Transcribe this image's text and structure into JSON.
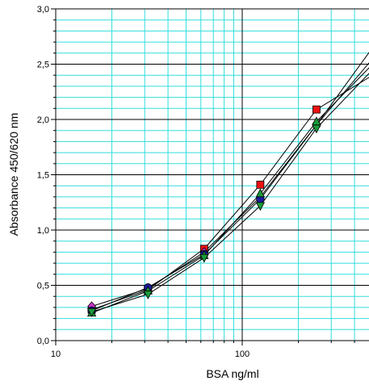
{
  "chart_data": {
    "type": "line",
    "title": "",
    "xlabel": "BSA  ng/ml",
    "ylabel": "Absorbance 450/620 nm",
    "x_scale": "log",
    "xlim": [
      10,
      457
    ],
    "ylim": [
      0,
      3.0
    ],
    "x_tick_labels": [
      {
        "value": 10,
        "label": "10"
      },
      {
        "value": 100,
        "label": "100"
      }
    ],
    "y_tick_labels": [
      {
        "value": 0,
        "label": "0,0"
      },
      {
        "value": 0.5,
        "label": "0,5"
      },
      {
        "value": 1.0,
        "label": "1,0"
      },
      {
        "value": 1.5,
        "label": "1,5"
      },
      {
        "value": 2.0,
        "label": "2,0"
      },
      {
        "value": 2.5,
        "label": "2,5"
      },
      {
        "value": 3.0,
        "label": "3,0"
      }
    ],
    "grid": {
      "major": true,
      "minor": true,
      "major_color": "#000000",
      "minor_color": "#33dddd"
    },
    "x": [
      15.6,
      31.25,
      62.5,
      125,
      250,
      500
    ],
    "series": [
      {
        "marker": "square",
        "color": "#ee1111",
        "values": [
          0.28,
          0.46,
          0.83,
          1.41,
          2.09,
          2.4
        ]
      },
      {
        "marker": "diamond",
        "color": "#cc33cc",
        "values": [
          0.31,
          0.47,
          0.8,
          1.3,
          1.95,
          2.65
        ]
      },
      {
        "marker": "circle",
        "color": "#1a1aa0",
        "values": [
          0.27,
          0.48,
          0.78,
          1.28,
          1.95,
          2.55
        ]
      },
      {
        "marker": "triangle-up",
        "color": "#1a9a3a",
        "values": [
          0.25,
          0.45,
          0.77,
          1.33,
          1.98,
          2.5
        ]
      },
      {
        "marker": "triangle-down",
        "color": "#1a9a3a",
        "values": [
          0.26,
          0.42,
          0.75,
          1.22,
          1.92,
          2.45
        ]
      }
    ]
  }
}
